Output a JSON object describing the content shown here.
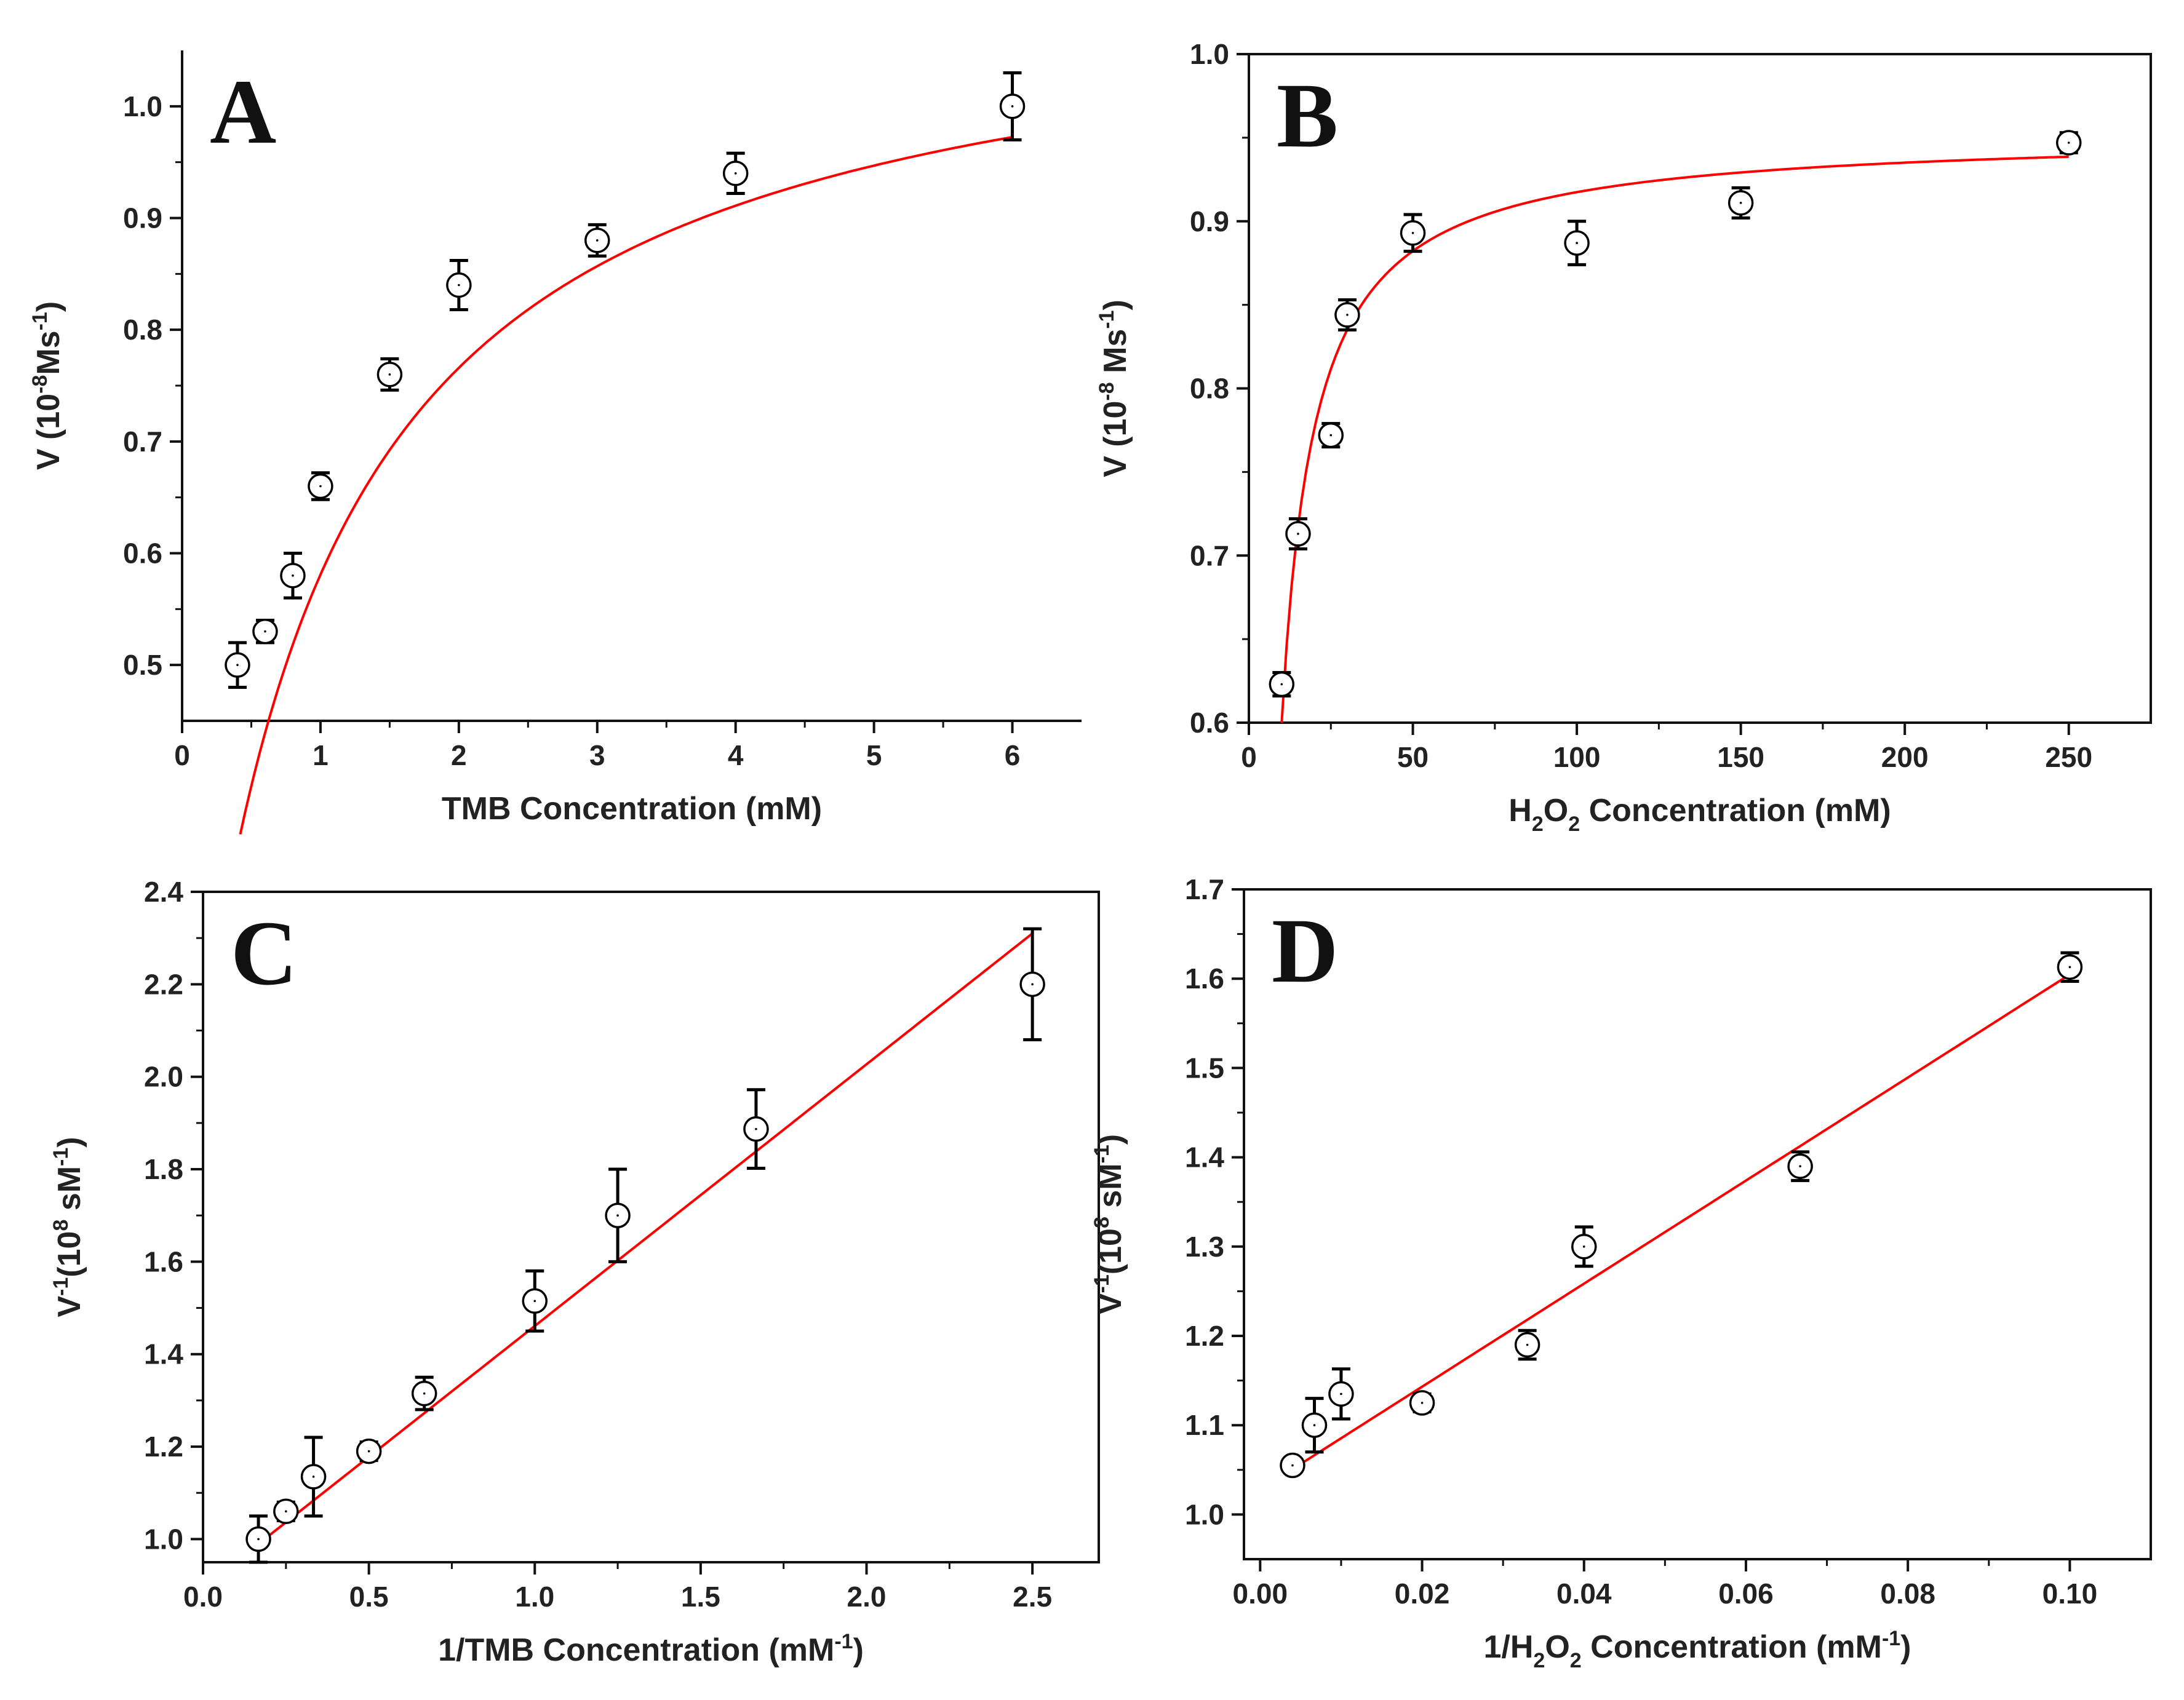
{
  "chart_data": [
    {
      "type": "scatter",
      "panel": "A",
      "xlabel": "TMB Concentration (mM)",
      "ylabel": {
        "main": "V (10",
        "sup1": "-8",
        "mid": "Ms",
        "sup2": "-1",
        "end": ")"
      },
      "xlim": [
        0,
        6.5
      ],
      "ylim": [
        0.45,
        1.05
      ],
      "xticks": [
        0,
        1,
        2,
        3,
        4,
        5,
        6
      ],
      "xtick_labels": [
        "0",
        "1",
        "2",
        "3",
        "4",
        "5",
        "6"
      ],
      "yticks": [
        0.5,
        0.6,
        0.7,
        0.8,
        0.9,
        1.0
      ],
      "ytick_labels": [
        "0.5",
        "0.6",
        "0.7",
        "0.8",
        "0.9",
        "1.0"
      ],
      "points": [
        {
          "x": 0.4,
          "y": 0.5,
          "err": 0.02
        },
        {
          "x": 0.6,
          "y": 0.53,
          "err": 0.01
        },
        {
          "x": 0.8,
          "y": 0.58,
          "err": 0.02
        },
        {
          "x": 1.0,
          "y": 0.66,
          "err": 0.012
        },
        {
          "x": 1.5,
          "y": 0.76,
          "err": 0.014
        },
        {
          "x": 2.0,
          "y": 0.84,
          "err": 0.022
        },
        {
          "x": 3.0,
          "y": 0.88,
          "err": 0.014
        },
        {
          "x": 4.0,
          "y": 0.94,
          "err": 0.018
        },
        {
          "x": 6.0,
          "y": 1.0,
          "err": 0.03
        }
      ],
      "fit": {
        "model": "michaelis-menten",
        "vmax": 1.124,
        "km": 0.935,
        "x_range": [
          0.42,
          6.0
        ]
      }
    },
    {
      "type": "scatter",
      "panel": "B",
      "xlabel": {
        "pre": "H",
        "sub1": "2",
        "mid": "O",
        "sub2": "2",
        "post": " Concentration (mM)"
      },
      "ylabel": {
        "main": "V (10",
        "sup1": "-8",
        "mid": " Ms",
        "sup2": "-1",
        "end": ")"
      },
      "xlim": [
        0,
        275
      ],
      "ylim": [
        0.6,
        1.0
      ],
      "xticks": [
        0,
        50,
        100,
        150,
        200,
        250
      ],
      "xtick_labels": [
        "0",
        "50",
        "100",
        "150",
        "200",
        "250"
      ],
      "yticks": [
        0.6,
        0.7,
        0.8,
        0.9,
        1.0
      ],
      "ytick_labels": [
        "0.6",
        "0.7",
        "0.8",
        "0.9",
        "1.0"
      ],
      "points": [
        {
          "x": 10,
          "y": 0.623,
          "err": 0.007
        },
        {
          "x": 15,
          "y": 0.713,
          "err": 0.009
        },
        {
          "x": 25,
          "y": 0.772,
          "err": 0.007
        },
        {
          "x": 30,
          "y": 0.844,
          "err": 0.009
        },
        {
          "x": 50,
          "y": 0.893,
          "err": 0.011
        },
        {
          "x": 100,
          "y": 0.887,
          "err": 0.013
        },
        {
          "x": 150,
          "y": 0.911,
          "err": 0.009
        },
        {
          "x": 250,
          "y": 0.947,
          "err": 0.006
        }
      ],
      "fit": {
        "model": "michaelis-menten-offset",
        "y0": 0.6,
        "a": 0.3527,
        "k": 10.0,
        "x_range": [
          10,
          250
        ]
      }
    },
    {
      "type": "scatter",
      "panel": "C",
      "xlabel": {
        "pre": "1/TMB Concentration (mM",
        "sup": "-1",
        "post": ")"
      },
      "ylabel": {
        "pre": "V",
        "sup1": "-1",
        "mid": "(10",
        "sup2": "8",
        "post": " sM",
        "sup3": "-1",
        "end": ")"
      },
      "xlim": [
        0,
        2.7
      ],
      "ylim": [
        0.95,
        2.4
      ],
      "xticks": [
        0,
        0.5,
        1.0,
        1.5,
        2.0,
        2.5
      ],
      "xtick_labels": [
        "0.0",
        "0.5",
        "1.0",
        "1.5",
        "2.0",
        "2.5"
      ],
      "yticks": [
        1.0,
        1.2,
        1.4,
        1.6,
        1.8,
        2.0,
        2.2,
        2.4
      ],
      "ytick_labels": [
        "1.0",
        "1.2",
        "1.4",
        "1.6",
        "1.8",
        "2.0",
        "2.2",
        "2.4"
      ],
      "points": [
        {
          "x": 0.167,
          "y": 1.0,
          "err": 0.05
        },
        {
          "x": 0.25,
          "y": 1.06,
          "err": 0.02
        },
        {
          "x": 0.333,
          "y": 1.135,
          "err": 0.085
        },
        {
          "x": 0.5,
          "y": 1.19,
          "err": 0.02
        },
        {
          "x": 0.667,
          "y": 1.315,
          "err": 0.035
        },
        {
          "x": 1.0,
          "y": 1.515,
          "err": 0.065
        },
        {
          "x": 1.25,
          "y": 1.7,
          "err": 0.1
        },
        {
          "x": 1.667,
          "y": 1.887,
          "err": 0.085
        },
        {
          "x": 2.5,
          "y": 2.2,
          "err": 0.12
        }
      ],
      "fit": {
        "model": "linear",
        "slope": 0.566,
        "intercept": 0.895,
        "x_range": [
          0.167,
          2.5
        ]
      }
    },
    {
      "type": "scatter",
      "panel": "D",
      "xlabel": {
        "pre": "1/H",
        "sub1": "2",
        "mid": "O",
        "sub2": "2",
        "post": " Concentration (mM",
        "sup": "-1",
        "end": ")"
      },
      "ylabel": {
        "pre": "V",
        "sup1": "-1",
        "mid": "(10",
        "sup2": "8",
        "post": " sM",
        "sup3": "-1",
        "end": ")"
      },
      "xlim": [
        -0.002,
        0.11
      ],
      "ylim": [
        0.95,
        1.7
      ],
      "xticks": [
        0,
        0.02,
        0.04,
        0.06,
        0.08,
        0.1
      ],
      "xtick_labels": [
        "0.00",
        "0.02",
        "0.04",
        "0.06",
        "0.08",
        "0.10"
      ],
      "yticks": [
        1.0,
        1.1,
        1.2,
        1.3,
        1.4,
        1.5,
        1.6,
        1.7
      ],
      "ytick_labels": [
        "1.0",
        "1.1",
        "1.2",
        "1.3",
        "1.4",
        "1.5",
        "1.6",
        "1.7"
      ],
      "points": [
        {
          "x": 0.004,
          "y": 1.055,
          "err": 0.008
        },
        {
          "x": 0.0067,
          "y": 1.1,
          "err": 0.03
        },
        {
          "x": 0.01,
          "y": 1.135,
          "err": 0.028
        },
        {
          "x": 0.02,
          "y": 1.125,
          "err": 0.01
        },
        {
          "x": 0.033,
          "y": 1.19,
          "err": 0.016
        },
        {
          "x": 0.04,
          "y": 1.3,
          "err": 0.022
        },
        {
          "x": 0.0667,
          "y": 1.39,
          "err": 0.016
        },
        {
          "x": 0.1,
          "y": 1.613,
          "err": 0.016
        }
      ],
      "fit": {
        "model": "linear",
        "slope": 5.77,
        "intercept": 1.0277,
        "x_range": [
          0.004,
          0.1
        ]
      }
    }
  ],
  "style": {
    "fit_color": "#ff0000",
    "marker_color": "#000000",
    "axis_color": "#111111"
  }
}
